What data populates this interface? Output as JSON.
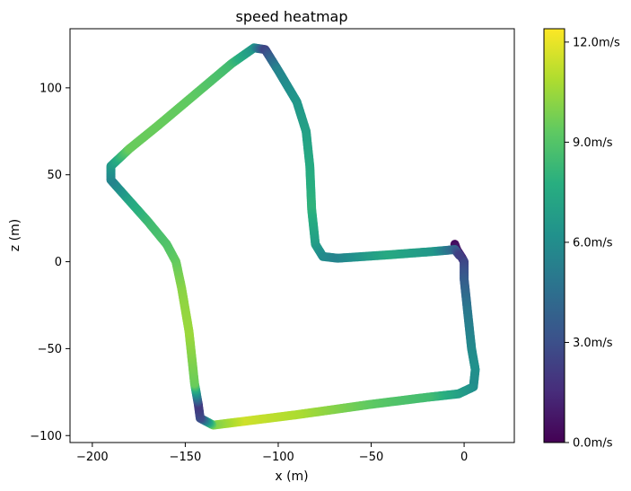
{
  "chart_data": {
    "type": "scatter",
    "title": "speed heatmap",
    "xlabel": "x (m)",
    "ylabel": "z (m)",
    "xlim": [
      -212,
      27
    ],
    "ylim": [
      -104,
      134
    ],
    "xticks": [
      -200,
      -150,
      -100,
      -50,
      0
    ],
    "yticks": [
      -100,
      -50,
      0,
      50,
      100
    ],
    "xtick_labels": [
      "−200",
      "−150",
      "−100",
      "−50",
      "0"
    ],
    "ytick_labels": [
      "−100",
      "−50",
      "0",
      "50",
      "100"
    ],
    "grid": false,
    "colormap": "viridis",
    "colorbar": {
      "range": [
        0,
        12.4
      ],
      "ticks": [
        0,
        3,
        6,
        9,
        12
      ],
      "tick_labels": [
        "0.0m/s",
        "3.0m/s",
        "6.0m/s",
        "9.0m/s",
        "12.0m/s"
      ]
    },
    "track": [
      {
        "x": -5,
        "z": 10,
        "speed": 0.3
      },
      {
        "x": -4,
        "z": 7,
        "speed": 0.8
      },
      {
        "x": -1,
        "z": 2,
        "speed": 1.5
      },
      {
        "x": 0,
        "z": 0,
        "speed": 2.5
      },
      {
        "x": 0,
        "z": -10,
        "speed": 3.5
      },
      {
        "x": 2,
        "z": -30,
        "speed": 5.0
      },
      {
        "x": 4,
        "z": -50,
        "speed": 5.8
      },
      {
        "x": 6,
        "z": -62,
        "speed": 6.2
      },
      {
        "x": 5,
        "z": -72,
        "speed": 6.0
      },
      {
        "x": -3,
        "z": -76,
        "speed": 6.8
      },
      {
        "x": -20,
        "z": -78,
        "speed": 8.5
      },
      {
        "x": -50,
        "z": -82,
        "speed": 9.2
      },
      {
        "x": -90,
        "z": -88,
        "speed": 10.8
      },
      {
        "x": -120,
        "z": -92,
        "speed": 11.5
      },
      {
        "x": -135,
        "z": -94,
        "speed": 10.0
      },
      {
        "x": -142,
        "z": -90,
        "speed": 3.0
      },
      {
        "x": -143,
        "z": -82,
        "speed": 2.0
      },
      {
        "x": -145,
        "z": -70,
        "speed": 9.5
      },
      {
        "x": -148,
        "z": -40,
        "speed": 10.5
      },
      {
        "x": -152,
        "z": -15,
        "speed": 10.2
      },
      {
        "x": -155,
        "z": 0,
        "speed": 9.5
      },
      {
        "x": -160,
        "z": 10,
        "speed": 9.0
      },
      {
        "x": -170,
        "z": 23,
        "speed": 8.5
      },
      {
        "x": -180,
        "z": 35,
        "speed": 7.5
      },
      {
        "x": -190,
        "z": 47,
        "speed": 5.5
      },
      {
        "x": -190,
        "z": 55,
        "speed": 6.5
      },
      {
        "x": -180,
        "z": 65,
        "speed": 9.5
      },
      {
        "x": -165,
        "z": 78,
        "speed": 9.5
      },
      {
        "x": -145,
        "z": 96,
        "speed": 9.3
      },
      {
        "x": -125,
        "z": 114,
        "speed": 8.5
      },
      {
        "x": -113,
        "z": 123,
        "speed": 6.5
      },
      {
        "x": -107,
        "z": 122,
        "speed": 2.5
      },
      {
        "x": -100,
        "z": 110,
        "speed": 5.5
      },
      {
        "x": -90,
        "z": 92,
        "speed": 6.5
      },
      {
        "x": -85,
        "z": 75,
        "speed": 7.0
      },
      {
        "x": -83,
        "z": 55,
        "speed": 7.5
      },
      {
        "x": -82,
        "z": 30,
        "speed": 8.0
      },
      {
        "x": -80,
        "z": 10,
        "speed": 7.0
      },
      {
        "x": -76,
        "z": 3,
        "speed": 6.0
      },
      {
        "x": -68,
        "z": 2,
        "speed": 5.5
      },
      {
        "x": -40,
        "z": 4,
        "speed": 7.5
      },
      {
        "x": -15,
        "z": 6,
        "speed": 6.5
      },
      {
        "x": -5,
        "z": 7,
        "speed": 4.0
      },
      {
        "x": -2,
        "z": 3,
        "speed": 2.0
      }
    ]
  }
}
